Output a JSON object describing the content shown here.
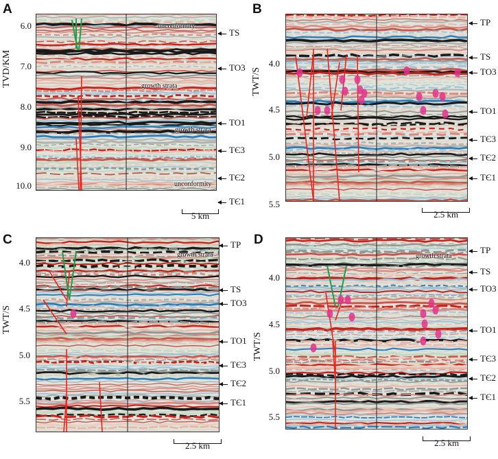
{
  "panels": {
    "A": {
      "letter": "A",
      "axis_title": "TVD/KM",
      "ticks": [
        "6.0",
        "7.0",
        "8.0",
        "9.0",
        "10.0"
      ],
      "horizons": [
        "TS",
        "TO3",
        "TO1",
        "TЄ3",
        "TЄ2",
        "TЄ1"
      ],
      "annotations": [
        "unconformity",
        "growth strata",
        "growth strata",
        "unconformity"
      ],
      "scale": "5 km"
    },
    "B": {
      "letter": "B",
      "axis_title": "TWT/S",
      "ticks": [
        "4.0",
        "4.5",
        "5.0",
        "5.5"
      ],
      "horizons": [
        "TP",
        "TS",
        "TO3",
        "TO1",
        "TЄ3",
        "TЄ2",
        "TЄ1"
      ],
      "scale": "2.5 km"
    },
    "C": {
      "letter": "C",
      "axis_title": "TWT/S",
      "ticks": [
        "4.0",
        "4.5",
        "5.0",
        "5.5"
      ],
      "horizons": [
        "TP",
        "TS",
        "TO3",
        "TO1",
        "TЄ3",
        "TЄ2",
        "TЄ1"
      ],
      "annotations": [
        "growth strata"
      ],
      "scale": "2.5 km"
    },
    "D": {
      "letter": "D",
      "axis_title": "TWT/S",
      "ticks": [
        "4.0",
        "4.5",
        "5.0",
        "5.5"
      ],
      "horizons": [
        "TP",
        "TS",
        "TO3",
        "TO1",
        "TЄ3",
        "TЄ2",
        "TЄ1"
      ],
      "annotations": [
        "growth strata"
      ],
      "scale": "2.5 km"
    }
  },
  "colors": {
    "fault": "#e8231e",
    "upper_fault": "#1f9e4a",
    "anomaly": "#e2338a",
    "reflector_red": "#c8221a",
    "reflector_black": "#1a1a1a",
    "reflector_blue": "#2c7fbf"
  }
}
